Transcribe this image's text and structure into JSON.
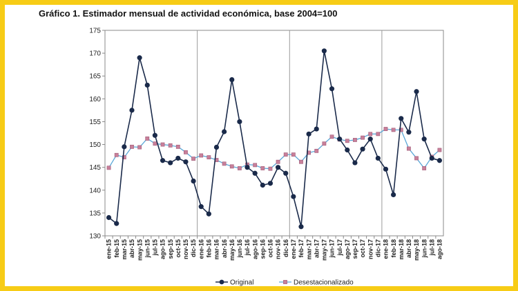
{
  "title": "Gráfico 1. Estimador mensual de actividad económica, base 2004=100",
  "chart_data": {
    "type": "line",
    "title": "Gráfico 1. Estimador mensual de actividad económica, base 2004=100",
    "xlabel": "",
    "ylabel": "",
    "ylim": [
      130,
      175
    ],
    "yticks": [
      130,
      135,
      140,
      145,
      150,
      155,
      160,
      165,
      170,
      175
    ],
    "grid": "vertical lines at year boundaries",
    "legend_position": "bottom-center",
    "categories": [
      "ene-15",
      "feb-15",
      "mar-15",
      "abr-15",
      "may-15",
      "jun-15",
      "jul-15",
      "ago-15",
      "sep-15",
      "oct-15",
      "nov-15",
      "dic-15",
      "ene-16",
      "feb-16",
      "mar-16",
      "abr-16",
      "may-16",
      "jun-16",
      "jul-16",
      "ago-16",
      "sep-16",
      "oct-16",
      "nov-16",
      "dic-16",
      "ene-17",
      "feb-17",
      "mar-17",
      "abr-17",
      "may-17",
      "jun-17",
      "jul-17",
      "ago-17",
      "sep-17",
      "oct-17",
      "nov-17",
      "dic-17",
      "ene-18",
      "feb-18",
      "mar-18",
      "abr-18",
      "may-18",
      "jun-18",
      "jul-18",
      "ago-18"
    ],
    "series": [
      {
        "name": "Original",
        "color": "#1a2a4a",
        "marker": "circle",
        "values": [
          134.0,
          132.7,
          149.5,
          157.5,
          169.0,
          163.0,
          152.0,
          146.5,
          146.0,
          147.0,
          146.2,
          142.0,
          136.4,
          134.8,
          149.4,
          152.8,
          164.2,
          155.0,
          145.0,
          143.7,
          141.1,
          141.5,
          145.0,
          143.7,
          138.6,
          132.0,
          152.3,
          153.4,
          170.5,
          162.2,
          151.2,
          148.8,
          146.0,
          149.0,
          151.2,
          147.0,
          144.6,
          139.0,
          155.7,
          152.7,
          161.6,
          151.2,
          147.0,
          146.5
        ]
      },
      {
        "name": "Desestacionalizado",
        "color": "#c8809a",
        "line_color": "#5aa8d8",
        "marker": "square",
        "values": [
          144.9,
          147.7,
          147.2,
          149.5,
          149.4,
          151.3,
          150.2,
          150.0,
          149.8,
          149.5,
          148.3,
          146.9,
          147.6,
          147.2,
          146.6,
          145.8,
          145.2,
          144.8,
          145.6,
          145.5,
          144.8,
          144.7,
          146.2,
          147.8,
          147.8,
          146.2,
          148.2,
          148.6,
          150.2,
          151.7,
          151.1,
          150.8,
          151.0,
          151.5,
          152.3,
          152.3,
          153.4,
          153.2,
          153.2,
          149.1,
          147.0,
          144.8,
          147.3,
          148.8
        ]
      }
    ]
  }
}
